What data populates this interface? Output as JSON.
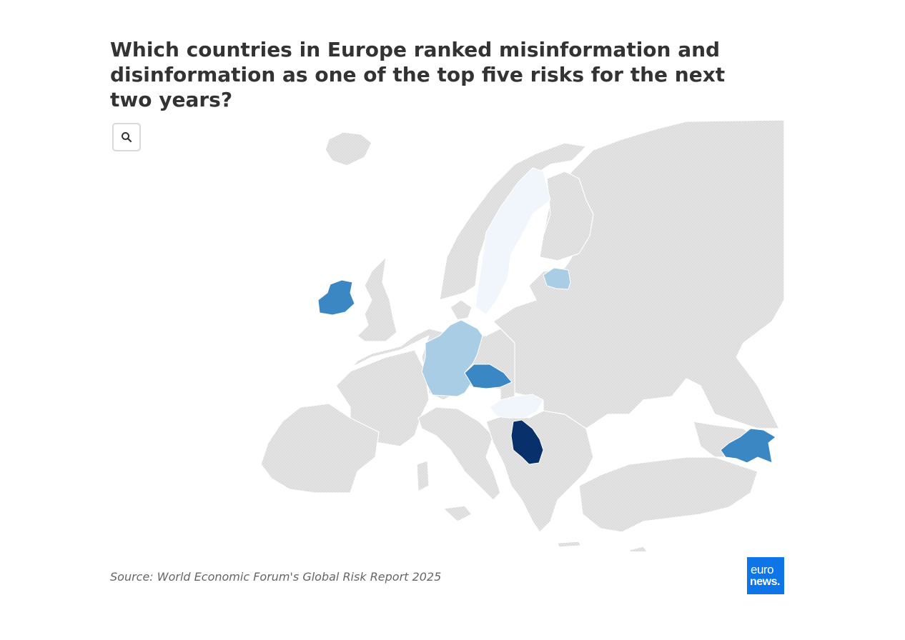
{
  "title": "Which countries in Europe ranked misinformation and disinformation as one of the top five risks for the next two years?",
  "source": "Source: World Economic Forum's Global Risk Report 2025",
  "logo": {
    "line1": "euro",
    "line2": "news."
  },
  "zoom_button": {
    "icon": "search-icon"
  },
  "colors": {
    "no_data": "#e0e0e0",
    "land_border": "#ffffff",
    "shade_1": "#f1f6fd",
    "shade_2": "#aacde6",
    "shade_3": "#3b87c4",
    "shade_4": "#08306b",
    "brand": "#0d75e8"
  },
  "highlighted_countries": [
    {
      "name": "Serbia",
      "shade": "shade_4"
    },
    {
      "name": "Ireland",
      "shade": "shade_3"
    },
    {
      "name": "Czechia",
      "shade": "shade_3"
    },
    {
      "name": "Azerbaijan",
      "shade": "shade_3"
    },
    {
      "name": "Germany",
      "shade": "shade_2"
    },
    {
      "name": "Estonia",
      "shade": "shade_2"
    },
    {
      "name": "Sweden",
      "shade": "shade_1"
    },
    {
      "name": "Hungary",
      "shade": "shade_1"
    }
  ]
}
